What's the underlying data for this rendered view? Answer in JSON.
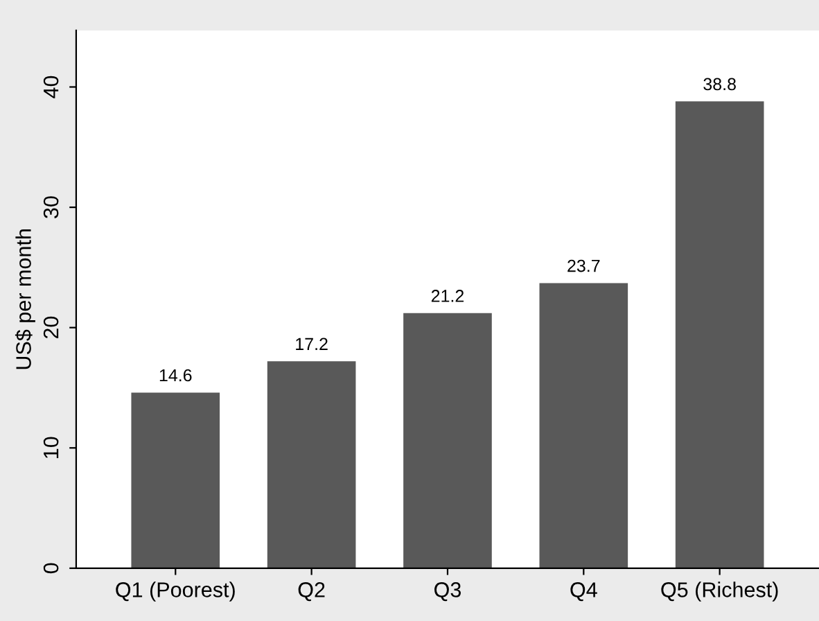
{
  "chart_data": {
    "type": "bar",
    "ylabel": "US$ per month",
    "categories": [
      "Q1 (Poorest)",
      "Q2",
      "Q3",
      "Q4",
      "Q5 (Richest)"
    ],
    "values": [
      14.6,
      17.2,
      21.2,
      23.7,
      38.8
    ],
    "color": "#595959",
    "ylim": [
      0,
      44.7
    ],
    "yticks": [
      0,
      10,
      20,
      30,
      40
    ],
    "data_labels": true,
    "grid": false,
    "legend": false
  }
}
